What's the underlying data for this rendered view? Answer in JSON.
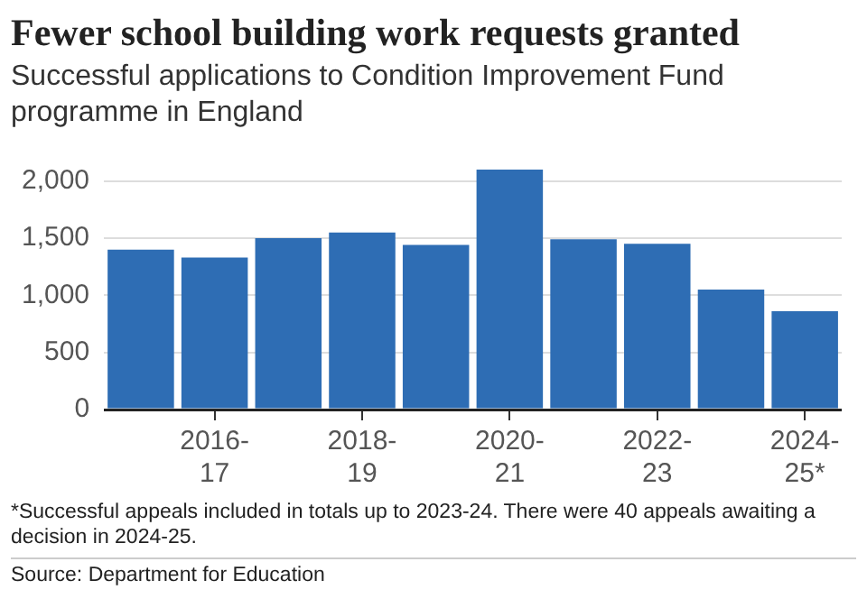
{
  "chart_data": {
    "type": "bar",
    "title": "Fewer school building work requests granted",
    "subtitle": "Successful applications to Condition Improvement Fund programme in England",
    "categories": [
      null,
      "2016-17",
      null,
      "2018-19",
      null,
      "2020-21",
      null,
      "2022-23",
      null,
      "2024-25*"
    ],
    "values": [
      1400,
      1330,
      1500,
      1550,
      1440,
      2100,
      1490,
      1450,
      1050,
      860
    ],
    "color": "#2e6db4",
    "ylim": [
      0,
      2100
    ],
    "yticks": [
      {
        "value": 0,
        "label": "0"
      },
      {
        "value": 500,
        "label": "500"
      },
      {
        "value": 1000,
        "label": "1,000"
      },
      {
        "value": 1500,
        "label": "1,500"
      },
      {
        "value": 2000,
        "label": "2,000"
      }
    ],
    "grid": "y",
    "legend": false,
    "annotations": [
      "*Successful appeals included in totals up to 2023-24. There were 40 appeals awaiting a decision in 2024-25.",
      "Source: Department for Education"
    ]
  }
}
